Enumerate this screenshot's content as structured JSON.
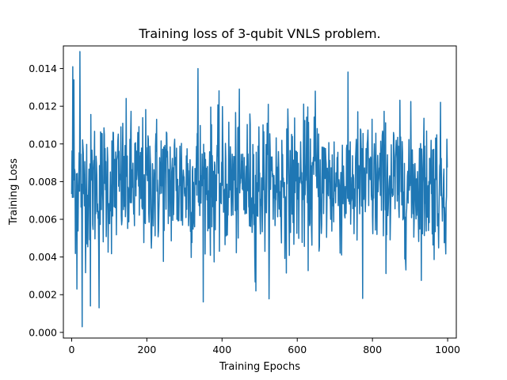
{
  "chart_data": {
    "type": "line",
    "title": "Training loss of 3-qubit VNLS problem.",
    "xlabel": "Training Epochs",
    "ylabel": "Training Loss",
    "xlim": [
      -22,
      1023
    ],
    "ylim": [
      -0.0003,
      0.0152
    ],
    "xticks": [
      0,
      200,
      400,
      600,
      800,
      1000
    ],
    "xtick_labels": [
      "0",
      "200",
      "400",
      "600",
      "800",
      "1000"
    ],
    "yticks": [
      0.0,
      0.002,
      0.004,
      0.006,
      0.008,
      0.01,
      0.012,
      0.014
    ],
    "ytick_labels": [
      "0.000",
      "0.002",
      "0.004",
      "0.006",
      "0.008",
      "0.010",
      "0.012",
      "0.014"
    ],
    "grid": false,
    "line_color": "#1f77b4",
    "series": [
      {
        "name": "",
        "x_start": 0,
        "x_step": 1,
        "points": 1000,
        "mean": 0.0079,
        "std": 0.0019,
        "min": 0.0003,
        "max": 0.0149,
        "notable_values": [
          {
            "x": 3,
            "y": 0.0141
          },
          {
            "x": 6,
            "y": 0.0134
          },
          {
            "x": 14,
            "y": 0.0023
          },
          {
            "x": 22,
            "y": 0.0149
          },
          {
            "x": 28,
            "y": 0.0003
          },
          {
            "x": 50,
            "y": 0.0014
          },
          {
            "x": 73,
            "y": 0.0013
          },
          {
            "x": 336,
            "y": 0.014
          },
          {
            "x": 490,
            "y": 0.0022
          },
          {
            "x": 648,
            "y": 0.0128
          },
          {
            "x": 774,
            "y": 0.0018
          },
          {
            "x": 1000,
            "y": 0.0125
          }
        ]
      }
    ]
  }
}
